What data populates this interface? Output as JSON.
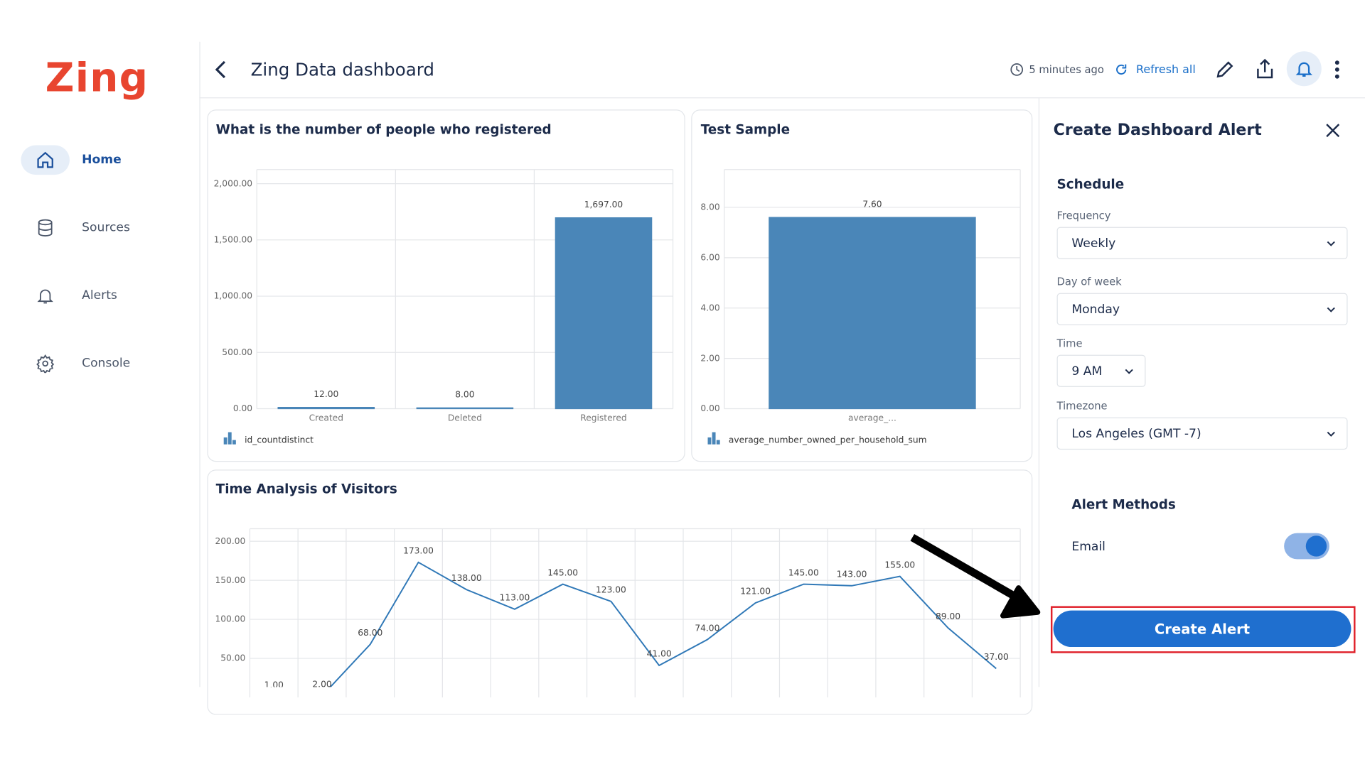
{
  "logo": "Zing",
  "nav": [
    "Home",
    "Sources",
    "Alerts",
    "Console"
  ],
  "header": {
    "title": "Zing Data dashboard",
    "updated": "5 minutes ago",
    "refresh": "Refresh all"
  },
  "charts": [
    {
      "type": "bar",
      "title": "What is the number of people who registered",
      "categories": [
        "Created",
        "Deleted",
        "Registered"
      ],
      "values": [
        12,
        8,
        1697
      ],
      "value_labels": [
        "12.00",
        "8.00",
        "1,697.00"
      ],
      "color": "#4a86b8",
      "ylim": [
        0,
        2125
      ],
      "yticks": [
        {
          "value": 0,
          "label": "0.00"
        },
        {
          "value": 500,
          "label": "500.00"
        },
        {
          "value": 1000,
          "label": "1,000.00"
        },
        {
          "value": 1500,
          "label": "1,500.00"
        },
        {
          "value": 2000,
          "label": "2,000.00"
        }
      ],
      "legend": "id_countdistinct"
    },
    {
      "type": "bar",
      "title": "Test Sample",
      "categories": [
        "average_..."
      ],
      "values": [
        7.6
      ],
      "value_labels": [
        "7.60"
      ],
      "color": "#4a86b8",
      "ylim": [
        0,
        9.5
      ],
      "yticks": [
        {
          "value": 0,
          "label": "0.00"
        },
        {
          "value": 2,
          "label": "2.00"
        },
        {
          "value": 4,
          "label": "4.00"
        },
        {
          "value": 6,
          "label": "6.00"
        },
        {
          "value": 8,
          "label": "8.00"
        }
      ],
      "legend": "average_number_owned_per_household_sum"
    },
    {
      "type": "line",
      "title": "Time Analysis of Visitors",
      "values": [
        1,
        2,
        68,
        173,
        138,
        113,
        145,
        123,
        41,
        74,
        121,
        145,
        143,
        155,
        89,
        37
      ],
      "value_labels": [
        "1.00",
        "2.00",
        "68.00",
        "173.00",
        "138.00",
        "113.00",
        "145.00",
        "123.00",
        "41.00",
        "74.00",
        "121.00",
        "145.00",
        "143.00",
        "155.00",
        "89.00",
        "37.00"
      ],
      "color": "#2f78b7",
      "ylim": [
        0,
        216
      ],
      "yticks": [
        {
          "value": 50,
          "label": "50.00"
        },
        {
          "value": 100,
          "label": "100.00"
        },
        {
          "value": 150,
          "label": "150.00"
        },
        {
          "value": 200,
          "label": "200.00"
        }
      ]
    }
  ],
  "alert_panel": {
    "title": "Create Dashboard Alert",
    "section": "Schedule",
    "fields": [
      {
        "label": "Frequency",
        "value": "Weekly"
      },
      {
        "label": "Day of week",
        "value": "Monday"
      },
      {
        "label": "Time",
        "value": "9 AM"
      },
      {
        "label": "Timezone",
        "value": "Los Angeles (GMT -7)"
      }
    ],
    "methods_title": "Alert Methods",
    "method": "Email",
    "email_enabled": true,
    "button": "Create Alert"
  }
}
